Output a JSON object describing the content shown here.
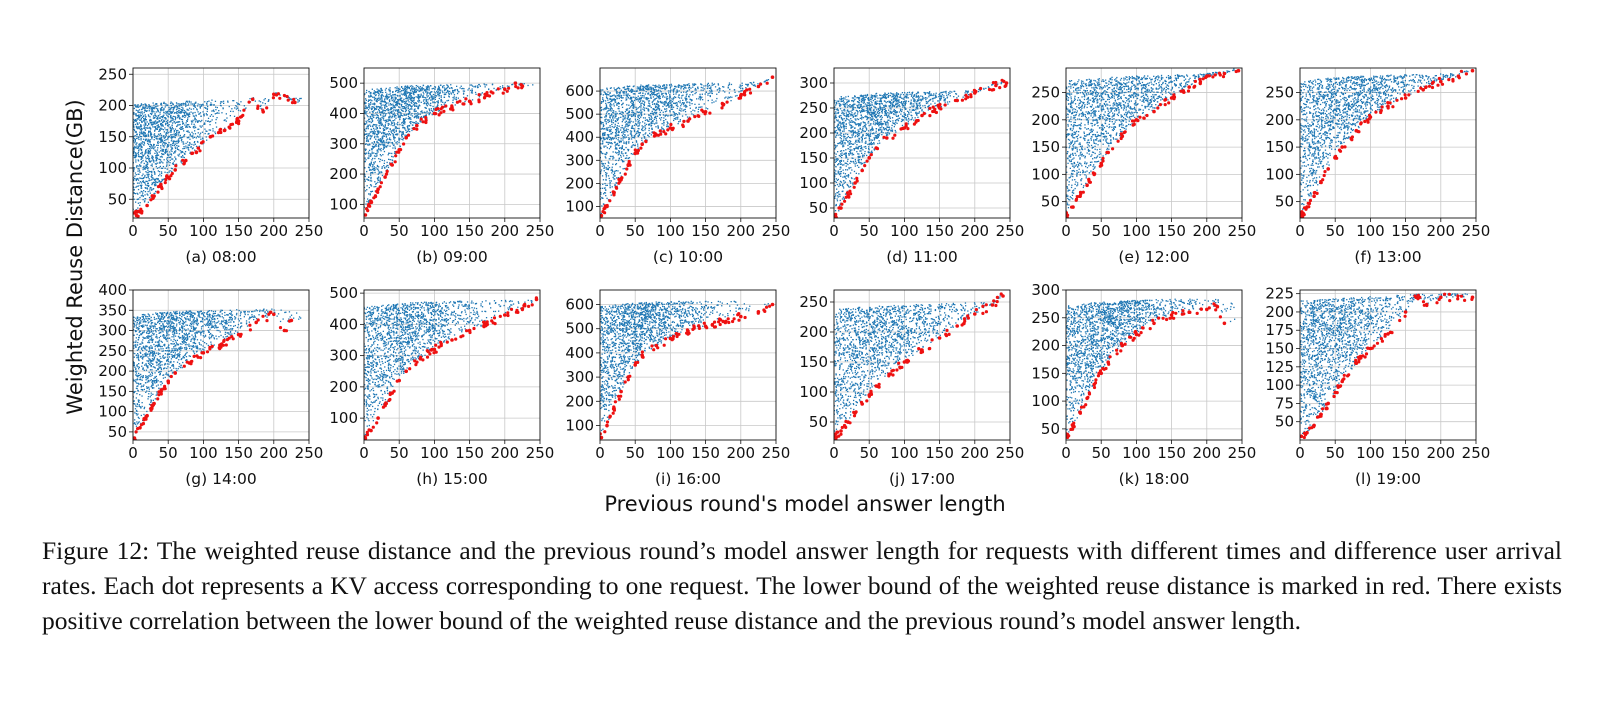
{
  "figure": {
    "ylabel": "Weighted Reuse Distance(GB)",
    "xlabel": "Previous round's model answer length",
    "caption": "Figure 12: The weighted reuse distance and the previous round’s model answer length for requests with different times and difference user arrival rates. Each dot represents a KV access corresponding to one request. The lower bound of the weighted reuse distance is marked in red. There exists positive correlation between the lower bound of the weighted reuse distance and the previous round’s model answer length."
  },
  "colors": {
    "scatter": "#1f77b4",
    "lower_bound": "#ee1111",
    "grid": "#c8c8c8"
  },
  "chart_data": [
    {
      "type": "scatter",
      "label": "(a) 08:00",
      "xlim": [
        0,
        250
      ],
      "ylim": [
        20,
        260
      ],
      "xticks": [
        0,
        50,
        100,
        150,
        200,
        250
      ],
      "yticks": [
        50,
        100,
        150,
        200,
        250
      ],
      "ymin_curve": 15,
      "ymax_curve": 212,
      "k": 45,
      "spread": 1.2,
      "lower_bound": [
        [
          2,
          28
        ],
        [
          5,
          24
        ],
        [
          10,
          30
        ],
        [
          20,
          40
        ],
        [
          30,
          55
        ],
        [
          40,
          70
        ],
        [
          50,
          85
        ],
        [
          60,
          97
        ],
        [
          75,
          112
        ],
        [
          90,
          125
        ],
        [
          110,
          150
        ],
        [
          130,
          160
        ],
        [
          150,
          175
        ],
        [
          170,
          210
        ],
        [
          185,
          190
        ],
        [
          200,
          218
        ],
        [
          230,
          205
        ]
      ]
    },
    {
      "type": "scatter",
      "label": "(b) 09:00",
      "xlim": [
        0,
        250
      ],
      "ylim": [
        55,
        550
      ],
      "xticks": [
        0,
        50,
        100,
        150,
        200,
        250
      ],
      "yticks": [
        100,
        200,
        300,
        400,
        500
      ],
      "ymin_curve": 55,
      "ymax_curve": 500,
      "k": 55,
      "spread": 1.1,
      "lower_bound": [
        [
          2,
          65
        ],
        [
          10,
          110
        ],
        [
          20,
          150
        ],
        [
          30,
          190
        ],
        [
          40,
          230
        ],
        [
          50,
          280
        ],
        [
          60,
          320
        ],
        [
          75,
          360
        ],
        [
          100,
          400
        ],
        [
          125,
          420
        ],
        [
          150,
          440
        ],
        [
          175,
          460
        ],
        [
          200,
          480
        ],
        [
          215,
          500
        ],
        [
          225,
          490
        ]
      ]
    },
    {
      "type": "scatter",
      "label": "(c) 10:00",
      "xlim": [
        0,
        250
      ],
      "ylim": [
        50,
        700
      ],
      "xticks": [
        0,
        50,
        100,
        150,
        200,
        250
      ],
      "yticks": [
        100,
        200,
        300,
        400,
        500,
        600
      ],
      "ymin_curve": 50,
      "ymax_curve": 640,
      "k": 60,
      "spread": 1.2,
      "lower_bound": [
        [
          2,
          60
        ],
        [
          10,
          100
        ],
        [
          20,
          160
        ],
        [
          30,
          220
        ],
        [
          40,
          280
        ],
        [
          50,
          330
        ],
        [
          60,
          370
        ],
        [
          80,
          410
        ],
        [
          100,
          440
        ],
        [
          125,
          470
        ],
        [
          150,
          510
        ],
        [
          175,
          540
        ],
        [
          200,
          580
        ],
        [
          225,
          620
        ],
        [
          245,
          660
        ]
      ]
    },
    {
      "type": "scatter",
      "label": "(d) 11:00",
      "xlim": [
        0,
        250
      ],
      "ylim": [
        30,
        330
      ],
      "xticks": [
        0,
        50,
        100,
        150,
        200,
        250
      ],
      "yticks": [
        50,
        100,
        150,
        200,
        250,
        300
      ],
      "ymin_curve": 30,
      "ymax_curve": 285,
      "k": 55,
      "spread": 1.2,
      "lower_bound": [
        [
          2,
          35
        ],
        [
          10,
          50
        ],
        [
          20,
          75
        ],
        [
          30,
          100
        ],
        [
          40,
          125
        ],
        [
          50,
          150
        ],
        [
          60,
          170
        ],
        [
          75,
          190
        ],
        [
          100,
          210
        ],
        [
          125,
          235
        ],
        [
          150,
          250
        ],
        [
          175,
          265
        ],
        [
          200,
          280
        ],
        [
          230,
          295
        ],
        [
          245,
          300
        ]
      ]
    },
    {
      "type": "scatter",
      "label": "(e) 12:00",
      "xlim": [
        0,
        250
      ],
      "ylim": [
        20,
        295
      ],
      "xticks": [
        0,
        50,
        100,
        150,
        200,
        250
      ],
      "yticks": [
        50,
        100,
        150,
        200,
        250
      ],
      "ymin_curve": 20,
      "ymax_curve": 285,
      "k": 60,
      "spread": 1.3,
      "lower_bound": [
        [
          2,
          25
        ],
        [
          10,
          40
        ],
        [
          20,
          60
        ],
        [
          30,
          80
        ],
        [
          40,
          100
        ],
        [
          50,
          120
        ],
        [
          60,
          140
        ],
        [
          80,
          170
        ],
        [
          100,
          200
        ],
        [
          125,
          215
        ],
        [
          150,
          240
        ],
        [
          175,
          260
        ],
        [
          200,
          280
        ],
        [
          225,
          285
        ],
        [
          245,
          290
        ]
      ]
    },
    {
      "type": "scatter",
      "label": "(f) 13:00",
      "xlim": [
        0,
        250
      ],
      "ylim": [
        20,
        295
      ],
      "xticks": [
        0,
        50,
        100,
        150,
        200,
        250
      ],
      "yticks": [
        50,
        100,
        150,
        200,
        250
      ],
      "ymin_curve": 20,
      "ymax_curve": 285,
      "k": 60,
      "spread": 1.3,
      "lower_bound": [
        [
          2,
          25
        ],
        [
          10,
          40
        ],
        [
          20,
          60
        ],
        [
          30,
          85
        ],
        [
          40,
          110
        ],
        [
          50,
          130
        ],
        [
          60,
          150
        ],
        [
          80,
          180
        ],
        [
          100,
          205
        ],
        [
          125,
          225
        ],
        [
          150,
          240
        ],
        [
          175,
          255
        ],
        [
          200,
          270
        ],
        [
          225,
          280
        ],
        [
          245,
          290
        ]
      ]
    },
    {
      "type": "scatter",
      "label": "(g) 14:00",
      "xlim": [
        0,
        250
      ],
      "ylim": [
        30,
        400
      ],
      "xticks": [
        0,
        50,
        100,
        150,
        200,
        250
      ],
      "yticks": [
        50,
        100,
        150,
        200,
        250,
        300,
        350,
        400
      ],
      "ymin_curve": 30,
      "ymax_curve": 355,
      "k": 60,
      "spread": 1.2,
      "lower_bound": [
        [
          2,
          35
        ],
        [
          10,
          60
        ],
        [
          20,
          90
        ],
        [
          30,
          120
        ],
        [
          40,
          150
        ],
        [
          50,
          175
        ],
        [
          60,
          195
        ],
        [
          80,
          220
        ],
        [
          100,
          245
        ],
        [
          125,
          265
        ],
        [
          150,
          290
        ],
        [
          175,
          320
        ],
        [
          200,
          340
        ],
        [
          215,
          300
        ],
        [
          225,
          325
        ]
      ]
    },
    {
      "type": "scatter",
      "label": "(h) 15:00",
      "xlim": [
        0,
        250
      ],
      "ylim": [
        30,
        510
      ],
      "xticks": [
        0,
        50,
        100,
        150,
        200,
        250
      ],
      "yticks": [
        100,
        200,
        300,
        400,
        500
      ],
      "ymin_curve": 30,
      "ymax_curve": 480,
      "k": 60,
      "spread": 1.2,
      "lower_bound": [
        [
          2,
          35
        ],
        [
          10,
          60
        ],
        [
          20,
          100
        ],
        [
          30,
          140
        ],
        [
          40,
          180
        ],
        [
          50,
          220
        ],
        [
          60,
          250
        ],
        [
          80,
          290
        ],
        [
          100,
          320
        ],
        [
          125,
          350
        ],
        [
          150,
          380
        ],
        [
          175,
          400
        ],
        [
          200,
          430
        ],
        [
          225,
          450
        ],
        [
          245,
          480
        ]
      ]
    },
    {
      "type": "scatter",
      "label": "(i) 16:00",
      "xlim": [
        0,
        250
      ],
      "ylim": [
        40,
        660
      ],
      "xticks": [
        0,
        50,
        100,
        150,
        200,
        250
      ],
      "yticks": [
        100,
        200,
        300,
        400,
        500,
        600
      ],
      "ymin_curve": 40,
      "ymax_curve": 620,
      "k": 55,
      "spread": 1.2,
      "lower_bound": [
        [
          2,
          50
        ],
        [
          10,
          100
        ],
        [
          20,
          170
        ],
        [
          30,
          240
        ],
        [
          40,
          300
        ],
        [
          50,
          350
        ],
        [
          60,
          390
        ],
        [
          80,
          430
        ],
        [
          100,
          460
        ],
        [
          125,
          490
        ],
        [
          150,
          510
        ],
        [
          175,
          530
        ],
        [
          200,
          550
        ],
        [
          225,
          570
        ],
        [
          245,
          600
        ]
      ]
    },
    {
      "type": "scatter",
      "label": "(j) 17:00",
      "xlim": [
        0,
        250
      ],
      "ylim": [
        20,
        270
      ],
      "xticks": [
        0,
        50,
        100,
        150,
        200,
        250
      ],
      "yticks": [
        50,
        100,
        150,
        200,
        250
      ],
      "ymin_curve": 20,
      "ymax_curve": 250,
      "k": 60,
      "spread": 1.3,
      "lower_bound": [
        [
          2,
          25
        ],
        [
          10,
          35
        ],
        [
          20,
          50
        ],
        [
          30,
          65
        ],
        [
          40,
          80
        ],
        [
          50,
          95
        ],
        [
          60,
          110
        ],
        [
          80,
          130
        ],
        [
          100,
          150
        ],
        [
          125,
          170
        ],
        [
          150,
          190
        ],
        [
          175,
          210
        ],
        [
          200,
          230
        ],
        [
          225,
          245
        ],
        [
          240,
          260
        ]
      ]
    },
    {
      "type": "scatter",
      "label": "(k) 18:00",
      "xlim": [
        0,
        250
      ],
      "ylim": [
        30,
        300
      ],
      "xticks": [
        0,
        50,
        100,
        150,
        200,
        250
      ],
      "yticks": [
        50,
        100,
        150,
        200,
        250,
        300
      ],
      "ymin_curve": 30,
      "ymax_curve": 285,
      "k": 55,
      "spread": 1.2,
      "lower_bound": [
        [
          2,
          35
        ],
        [
          10,
          55
        ],
        [
          20,
          80
        ],
        [
          30,
          105
        ],
        [
          40,
          130
        ],
        [
          50,
          150
        ],
        [
          60,
          170
        ],
        [
          80,
          200
        ],
        [
          100,
          220
        ],
        [
          125,
          240
        ],
        [
          150,
          255
        ],
        [
          175,
          260
        ],
        [
          200,
          265
        ],
        [
          215,
          270
        ],
        [
          225,
          240
        ]
      ]
    },
    {
      "type": "scatter",
      "label": "(l) 19:00",
      "xlim": [
        0,
        250
      ],
      "ylim": [
        25,
        230
      ],
      "xticks": [
        0,
        50,
        100,
        150,
        200,
        250
      ],
      "yticks": [
        50,
        75,
        100,
        125,
        150,
        175,
        200,
        225
      ],
      "ymin_curve": 25,
      "ymax_curve": 225,
      "k": 50,
      "spread": 1.3,
      "lower_bound": [
        [
          2,
          30
        ],
        [
          10,
          35
        ],
        [
          20,
          45
        ],
        [
          30,
          60
        ],
        [
          40,
          75
        ],
        [
          50,
          90
        ],
        [
          60,
          105
        ],
        [
          80,
          130
        ],
        [
          100,
          150
        ],
        [
          125,
          170
        ],
        [
          150,
          200
        ],
        [
          165,
          220
        ],
        [
          180,
          210
        ],
        [
          200,
          220
        ],
        [
          245,
          220
        ]
      ]
    }
  ]
}
